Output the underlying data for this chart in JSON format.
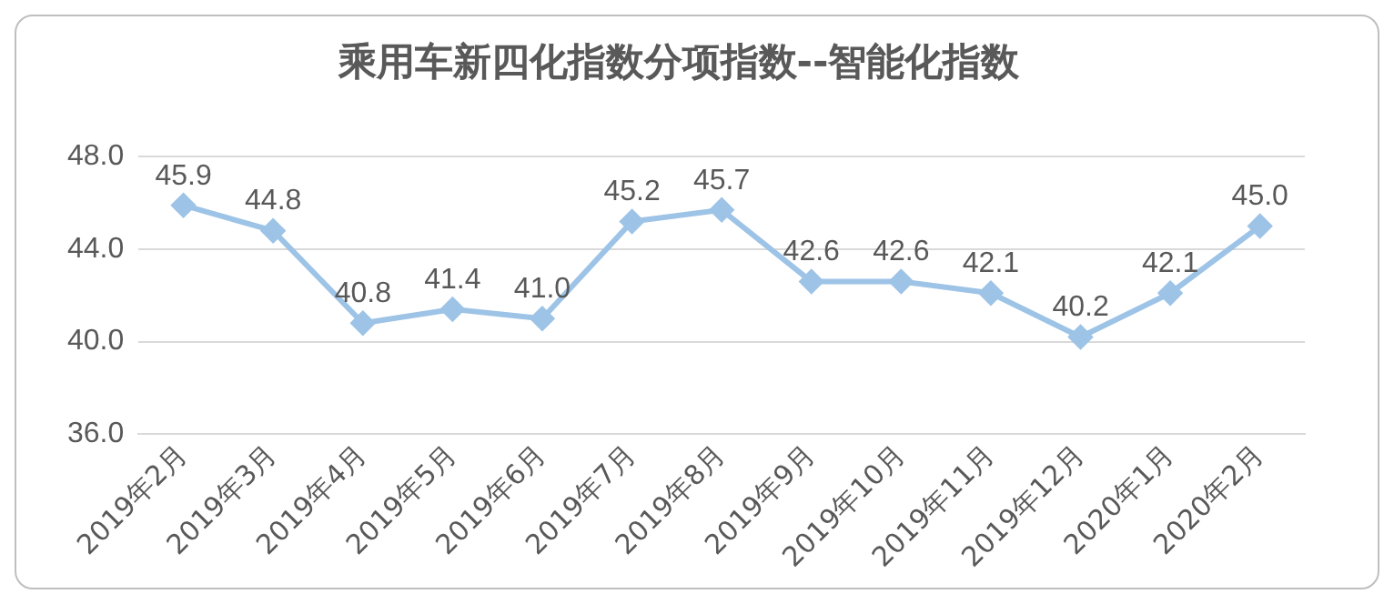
{
  "chart_data": {
    "type": "line",
    "title": "乘用车新四化指数分项指数--智能化指数",
    "categories": [
      "2019年2月",
      "2019年3月",
      "2019年4月",
      "2019年5月",
      "2019年6月",
      "2019年7月",
      "2019年8月",
      "2019年9月",
      "2019年10月",
      "2019年11月",
      "2019年12月",
      "2020年1月",
      "2020年2月"
    ],
    "series": [
      {
        "color": "#9dc3e6",
        "values": [
          45.9,
          44.8,
          40.8,
          41.4,
          41.0,
          45.2,
          45.7,
          42.6,
          42.6,
          42.1,
          40.2,
          42.1,
          45.0
        ],
        "value_labels": [
          "45.9",
          "44.8",
          "40.8",
          "41.4",
          "41.0",
          "45.2",
          "45.7",
          "42.6",
          "42.6",
          "42.1",
          "40.2",
          "42.1",
          "45.0"
        ]
      }
    ],
    "ylim": [
      36,
      48
    ],
    "yticks": [
      {
        "value": 36,
        "label": "36.0"
      },
      {
        "value": 40,
        "label": "40.0"
      },
      {
        "value": 44,
        "label": "44.0"
      },
      {
        "value": 48,
        "label": "48.0"
      }
    ],
    "grid": "y",
    "marker": "diamond",
    "line_style": "solid",
    "legend": false
  }
}
